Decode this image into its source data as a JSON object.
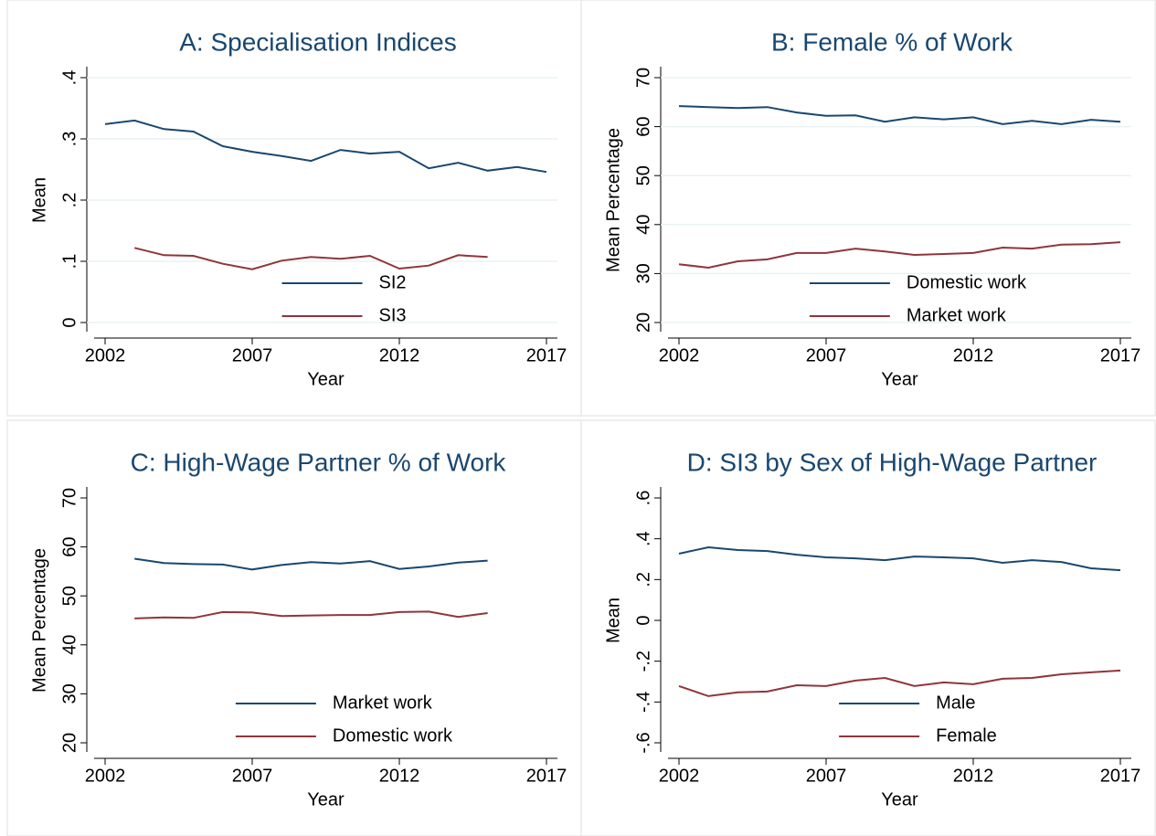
{
  "chart_data": [
    {
      "type": "line",
      "title": "A: Specialisation Indices",
      "x_label": "Year",
      "y_label": "Mean",
      "x": [
        2002,
        2003,
        2004,
        2005,
        2006,
        2007,
        2008,
        2009,
        2010,
        2011,
        2012,
        2013,
        2014,
        2015,
        2016,
        2017
      ],
      "xlim": [
        2002,
        2017
      ],
      "xticks": [
        2002,
        2007,
        2012,
        2017
      ],
      "ylim": [
        0,
        0.4
      ],
      "yticks": [
        0,
        {
          "value": 0.1,
          "label": ".1"
        },
        {
          "value": 0.2,
          "label": ".2"
        },
        {
          "value": 0.3,
          "label": ".3"
        },
        {
          "value": 0.4,
          "label": ".4"
        }
      ],
      "grid": true,
      "legend": "bottom",
      "series": [
        {
          "name": "SI2",
          "color": "#1a476f",
          "values": [
            0.324,
            0.33,
            0.316,
            0.312,
            0.288,
            0.279,
            0.272,
            0.264,
            0.282,
            0.276,
            0.279,
            0.252,
            0.261,
            0.248,
            0.254,
            0.246
          ]
        },
        {
          "name": "SI3",
          "color": "#90353b",
          "values": [
            null,
            0.122,
            0.11,
            0.109,
            0.096,
            0.087,
            0.101,
            0.107,
            0.104,
            0.109,
            0.088,
            0.093,
            0.11,
            0.107,
            null,
            null
          ]
        }
      ]
    },
    {
      "type": "line",
      "title": "B: Female % of Work",
      "x_label": "Year",
      "y_label": "Mean Percentage",
      "x": [
        2002,
        2003,
        2004,
        2005,
        2006,
        2007,
        2008,
        2009,
        2010,
        2011,
        2012,
        2013,
        2014,
        2015,
        2016,
        2017
      ],
      "xlim": [
        2002,
        2017
      ],
      "xticks": [
        2002,
        2007,
        2012,
        2017
      ],
      "ylim": [
        20,
        70
      ],
      "yticks": [
        20,
        30,
        40,
        50,
        60,
        70
      ],
      "grid": true,
      "legend": "bottom",
      "series": [
        {
          "name": "Domestic work",
          "color": "#1a476f",
          "values": [
            64.2,
            64.0,
            63.8,
            64.0,
            62.9,
            62.2,
            62.3,
            61.0,
            61.9,
            61.5,
            61.9,
            60.5,
            61.2,
            60.5,
            61.4,
            61.0
          ]
        },
        {
          "name": "Market work",
          "color": "#90353b",
          "values": [
            31.9,
            31.2,
            32.5,
            32.9,
            34.2,
            34.2,
            35.1,
            34.5,
            33.8,
            34.0,
            34.2,
            35.3,
            35.1,
            35.9,
            36.0,
            36.4
          ]
        }
      ]
    },
    {
      "type": "line",
      "title": "C: High-Wage Partner % of Work",
      "x_label": "Year",
      "y_label": "Mean Percentage",
      "x": [
        2002,
        2003,
        2004,
        2005,
        2006,
        2007,
        2008,
        2009,
        2010,
        2011,
        2012,
        2013,
        2014,
        2015,
        2016,
        2017
      ],
      "xlim": [
        2002,
        2017
      ],
      "xticks": [
        2002,
        2007,
        2012,
        2017
      ],
      "ylim": [
        20,
        70
      ],
      "yticks": [
        20,
        30,
        40,
        50,
        60,
        70
      ],
      "grid": false,
      "legend": "bottom",
      "series": [
        {
          "name": "Market work",
          "color": "#1a476f",
          "values": [
            null,
            57.6,
            56.7,
            56.5,
            56.4,
            55.4,
            56.3,
            56.9,
            56.6,
            57.1,
            55.5,
            56.0,
            56.8,
            57.2,
            null,
            null
          ]
        },
        {
          "name": "Domestic work",
          "color": "#90353b",
          "values": [
            null,
            45.4,
            45.6,
            45.5,
            46.7,
            46.6,
            45.9,
            46.0,
            46.1,
            46.1,
            46.7,
            46.8,
            45.7,
            46.5,
            null,
            null
          ]
        }
      ]
    },
    {
      "type": "line",
      "title": "D: SI3 by Sex of High-Wage Partner",
      "x_label": "Year",
      "y_label": "Mean",
      "x": [
        2002,
        2003,
        2004,
        2005,
        2006,
        2007,
        2008,
        2009,
        2010,
        2011,
        2012,
        2013,
        2014,
        2015,
        2016,
        2017
      ],
      "xlim": [
        2002,
        2017
      ],
      "xticks": [
        2002,
        2007,
        2012,
        2017
      ],
      "ylim": [
        -0.6,
        0.6
      ],
      "yticks": [
        {
          "value": -0.6,
          "label": "-.6"
        },
        {
          "value": -0.4,
          "label": "-.4"
        },
        {
          "value": -0.2,
          "label": "-.2"
        },
        0,
        {
          "value": 0.2,
          "label": ".2"
        },
        {
          "value": 0.4,
          "label": ".4"
        },
        {
          "value": 0.6,
          "label": ".6"
        }
      ],
      "grid": false,
      "legend": "bottom",
      "series": [
        {
          "name": "Male",
          "color": "#1a476f",
          "values": [
            0.327,
            0.358,
            0.345,
            0.34,
            0.322,
            0.309,
            0.304,
            0.295,
            0.313,
            0.309,
            0.304,
            0.282,
            0.295,
            0.286,
            0.255,
            0.246
          ]
        },
        {
          "name": "Female",
          "color": "#90353b",
          "values": [
            -0.322,
            -0.371,
            -0.353,
            -0.349,
            -0.318,
            -0.322,
            -0.295,
            -0.282,
            -0.322,
            -0.304,
            -0.313,
            -0.286,
            -0.282,
            -0.264,
            -0.255,
            -0.246
          ]
        }
      ]
    }
  ]
}
